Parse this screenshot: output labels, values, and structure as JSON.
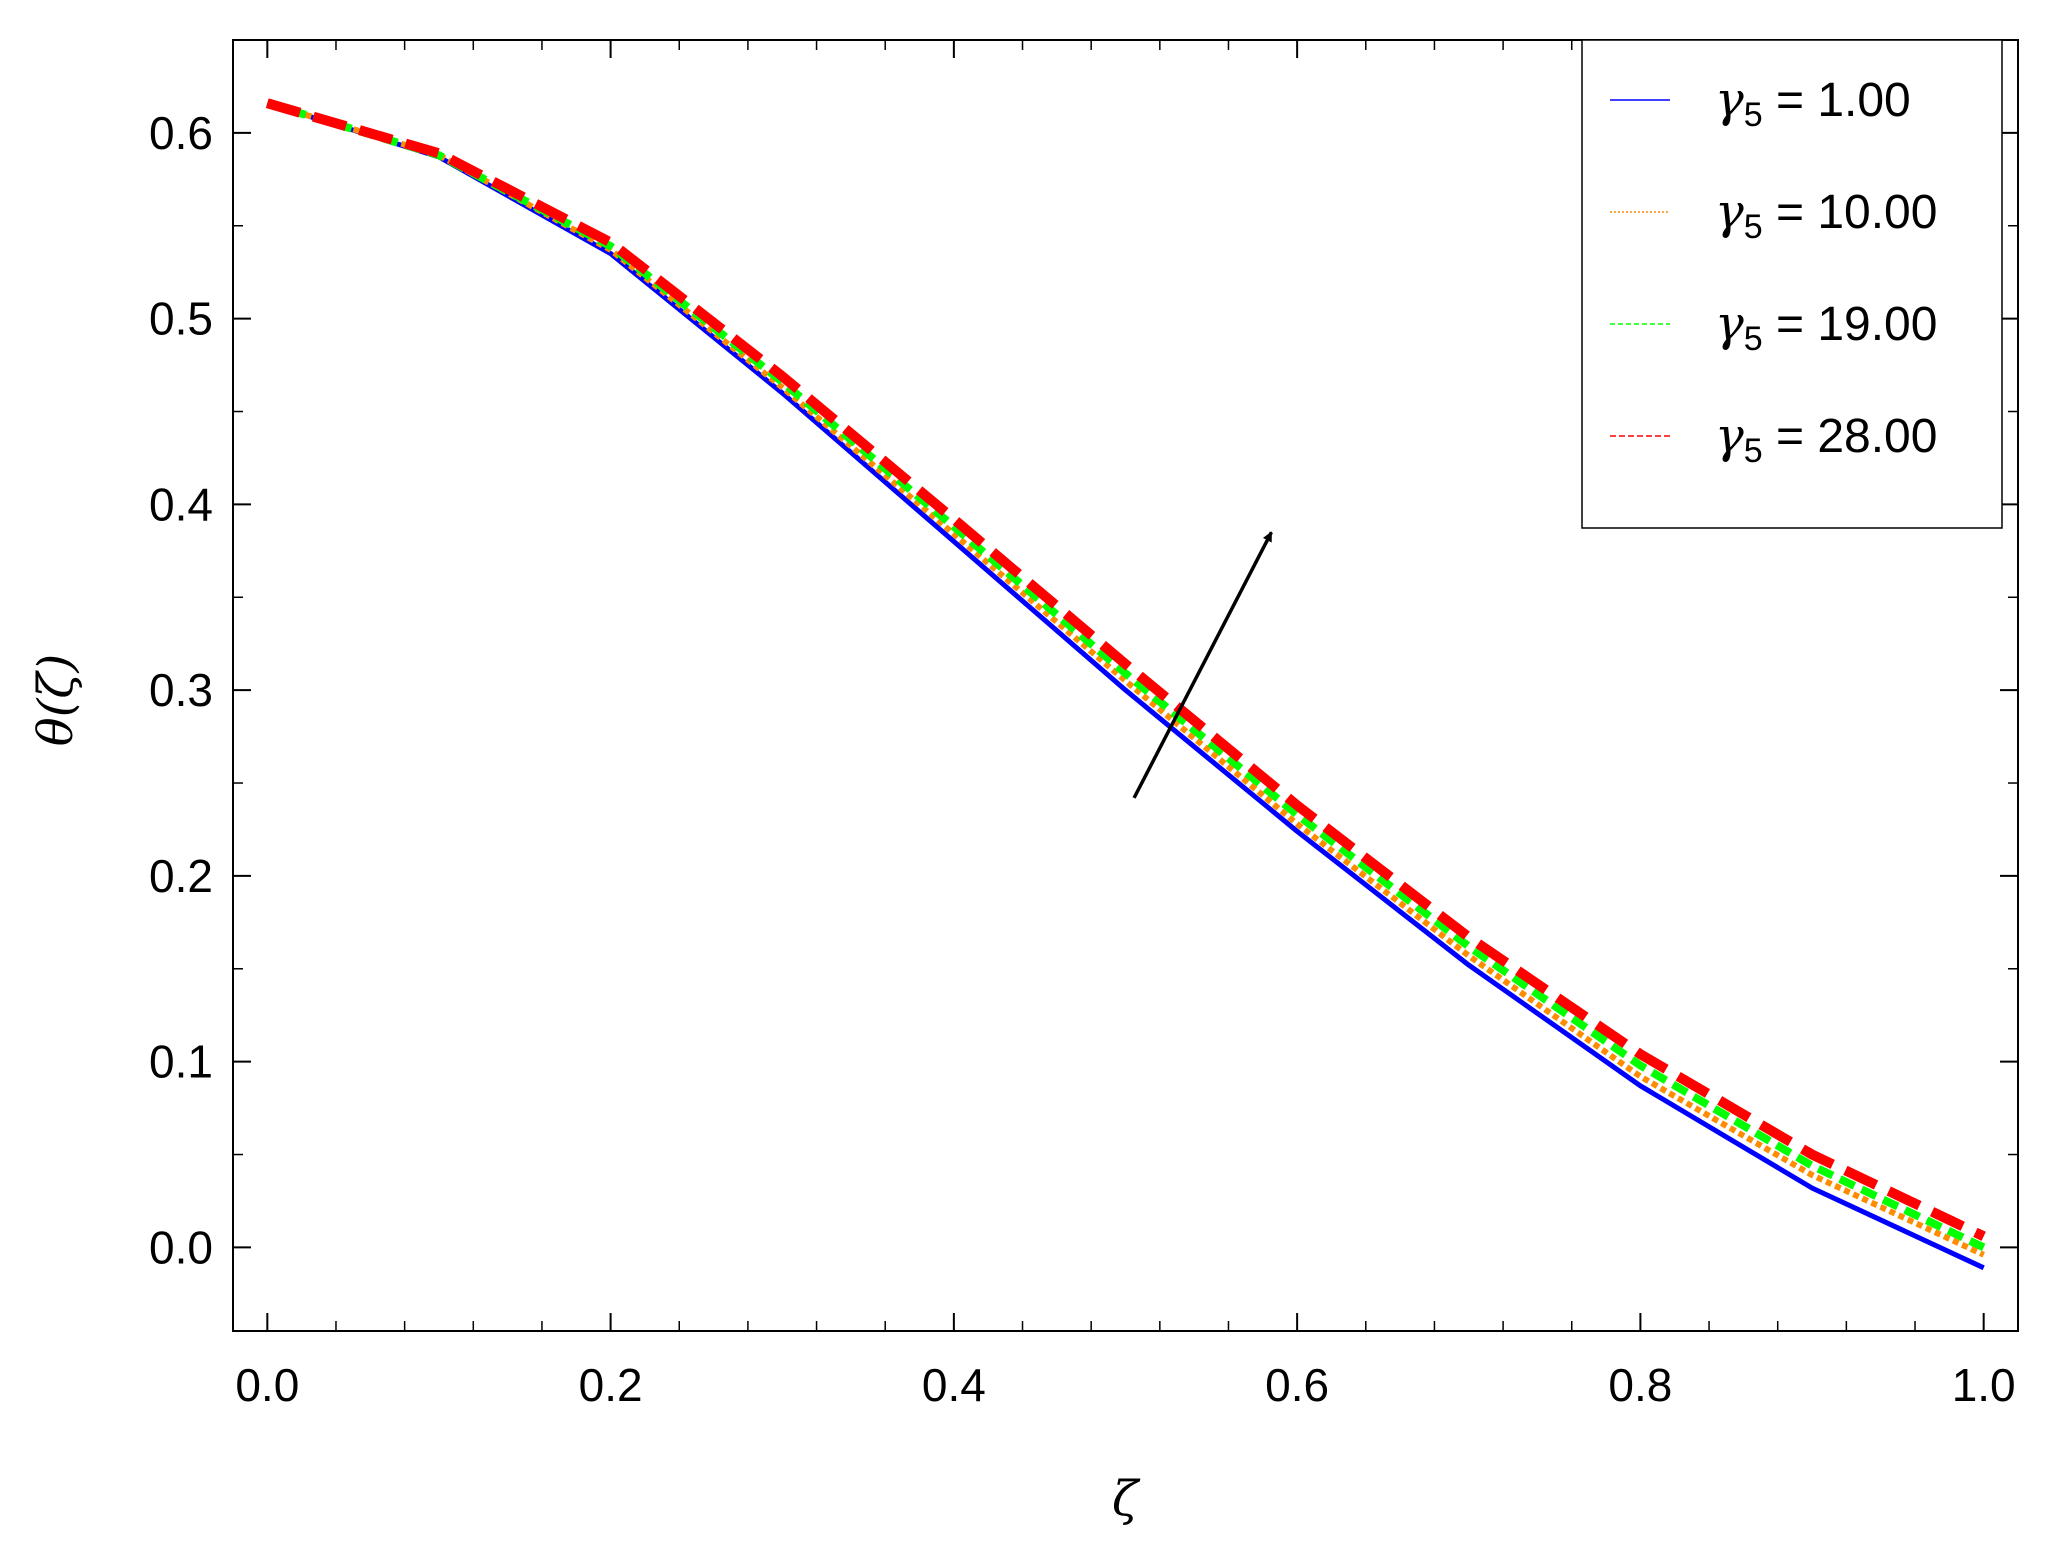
{
  "chart_data": {
    "type": "line",
    "xlabel": "ζ",
    "ylabel": "θ(ζ)",
    "xlim": [
      -0.02,
      1.02
    ],
    "ylim": [
      -0.045,
      0.65
    ],
    "xticks": [
      0.0,
      0.2,
      0.4,
      0.6,
      0.8,
      1.0
    ],
    "xtick_labels": [
      "0.0",
      "0.2",
      "0.4",
      "0.6",
      "0.8",
      "1.0"
    ],
    "yticks": [
      0.0,
      0.1,
      0.2,
      0.3,
      0.4,
      0.5,
      0.6
    ],
    "ytick_labels": [
      "0.0",
      "0.1",
      "0.2",
      "0.3",
      "0.4",
      "0.5",
      "0.6"
    ],
    "grid": false,
    "legend_position": "top-right",
    "x": [
      0.0,
      0.1,
      0.2,
      0.3,
      0.4,
      0.5,
      0.6,
      0.7,
      0.8,
      0.9,
      1.0
    ],
    "series": [
      {
        "symbol": "γ",
        "subscript": "5",
        "value_text": " = 1.00",
        "color": "#0000ff",
        "style": "solid",
        "values": [
          0.616,
          0.587,
          0.535,
          0.46,
          0.38,
          0.3,
          0.224,
          0.152,
          0.087,
          0.032,
          -0.011
        ]
      },
      {
        "symbol": "γ",
        "subscript": "5",
        "value_text": " = 10.00",
        "color": "#ff8c00",
        "style": "dotted",
        "values": [
          0.616,
          0.588,
          0.537,
          0.463,
          0.384,
          0.305,
          0.228,
          0.157,
          0.092,
          0.039,
          -0.004
        ]
      },
      {
        "symbol": "γ",
        "subscript": "5",
        "value_text": " = 19.00",
        "color": "#00ff00",
        "style": "dashed",
        "values": [
          0.616,
          0.588,
          0.539,
          0.466,
          0.388,
          0.309,
          0.233,
          0.162,
          0.098,
          0.044,
          0.0
        ]
      },
      {
        "symbol": "γ",
        "subscript": "5",
        "value_text": " = 28.00",
        "color": "#ff0000",
        "style": "longdash",
        "values": [
          0.616,
          0.589,
          0.541,
          0.469,
          0.392,
          0.314,
          0.238,
          0.167,
          0.104,
          0.05,
          0.006
        ]
      }
    ],
    "annotations": [
      {
        "type": "arrow",
        "from": [
          0.505,
          0.242
        ],
        "to": [
          0.585,
          0.385
        ],
        "color": "#000000"
      }
    ]
  }
}
